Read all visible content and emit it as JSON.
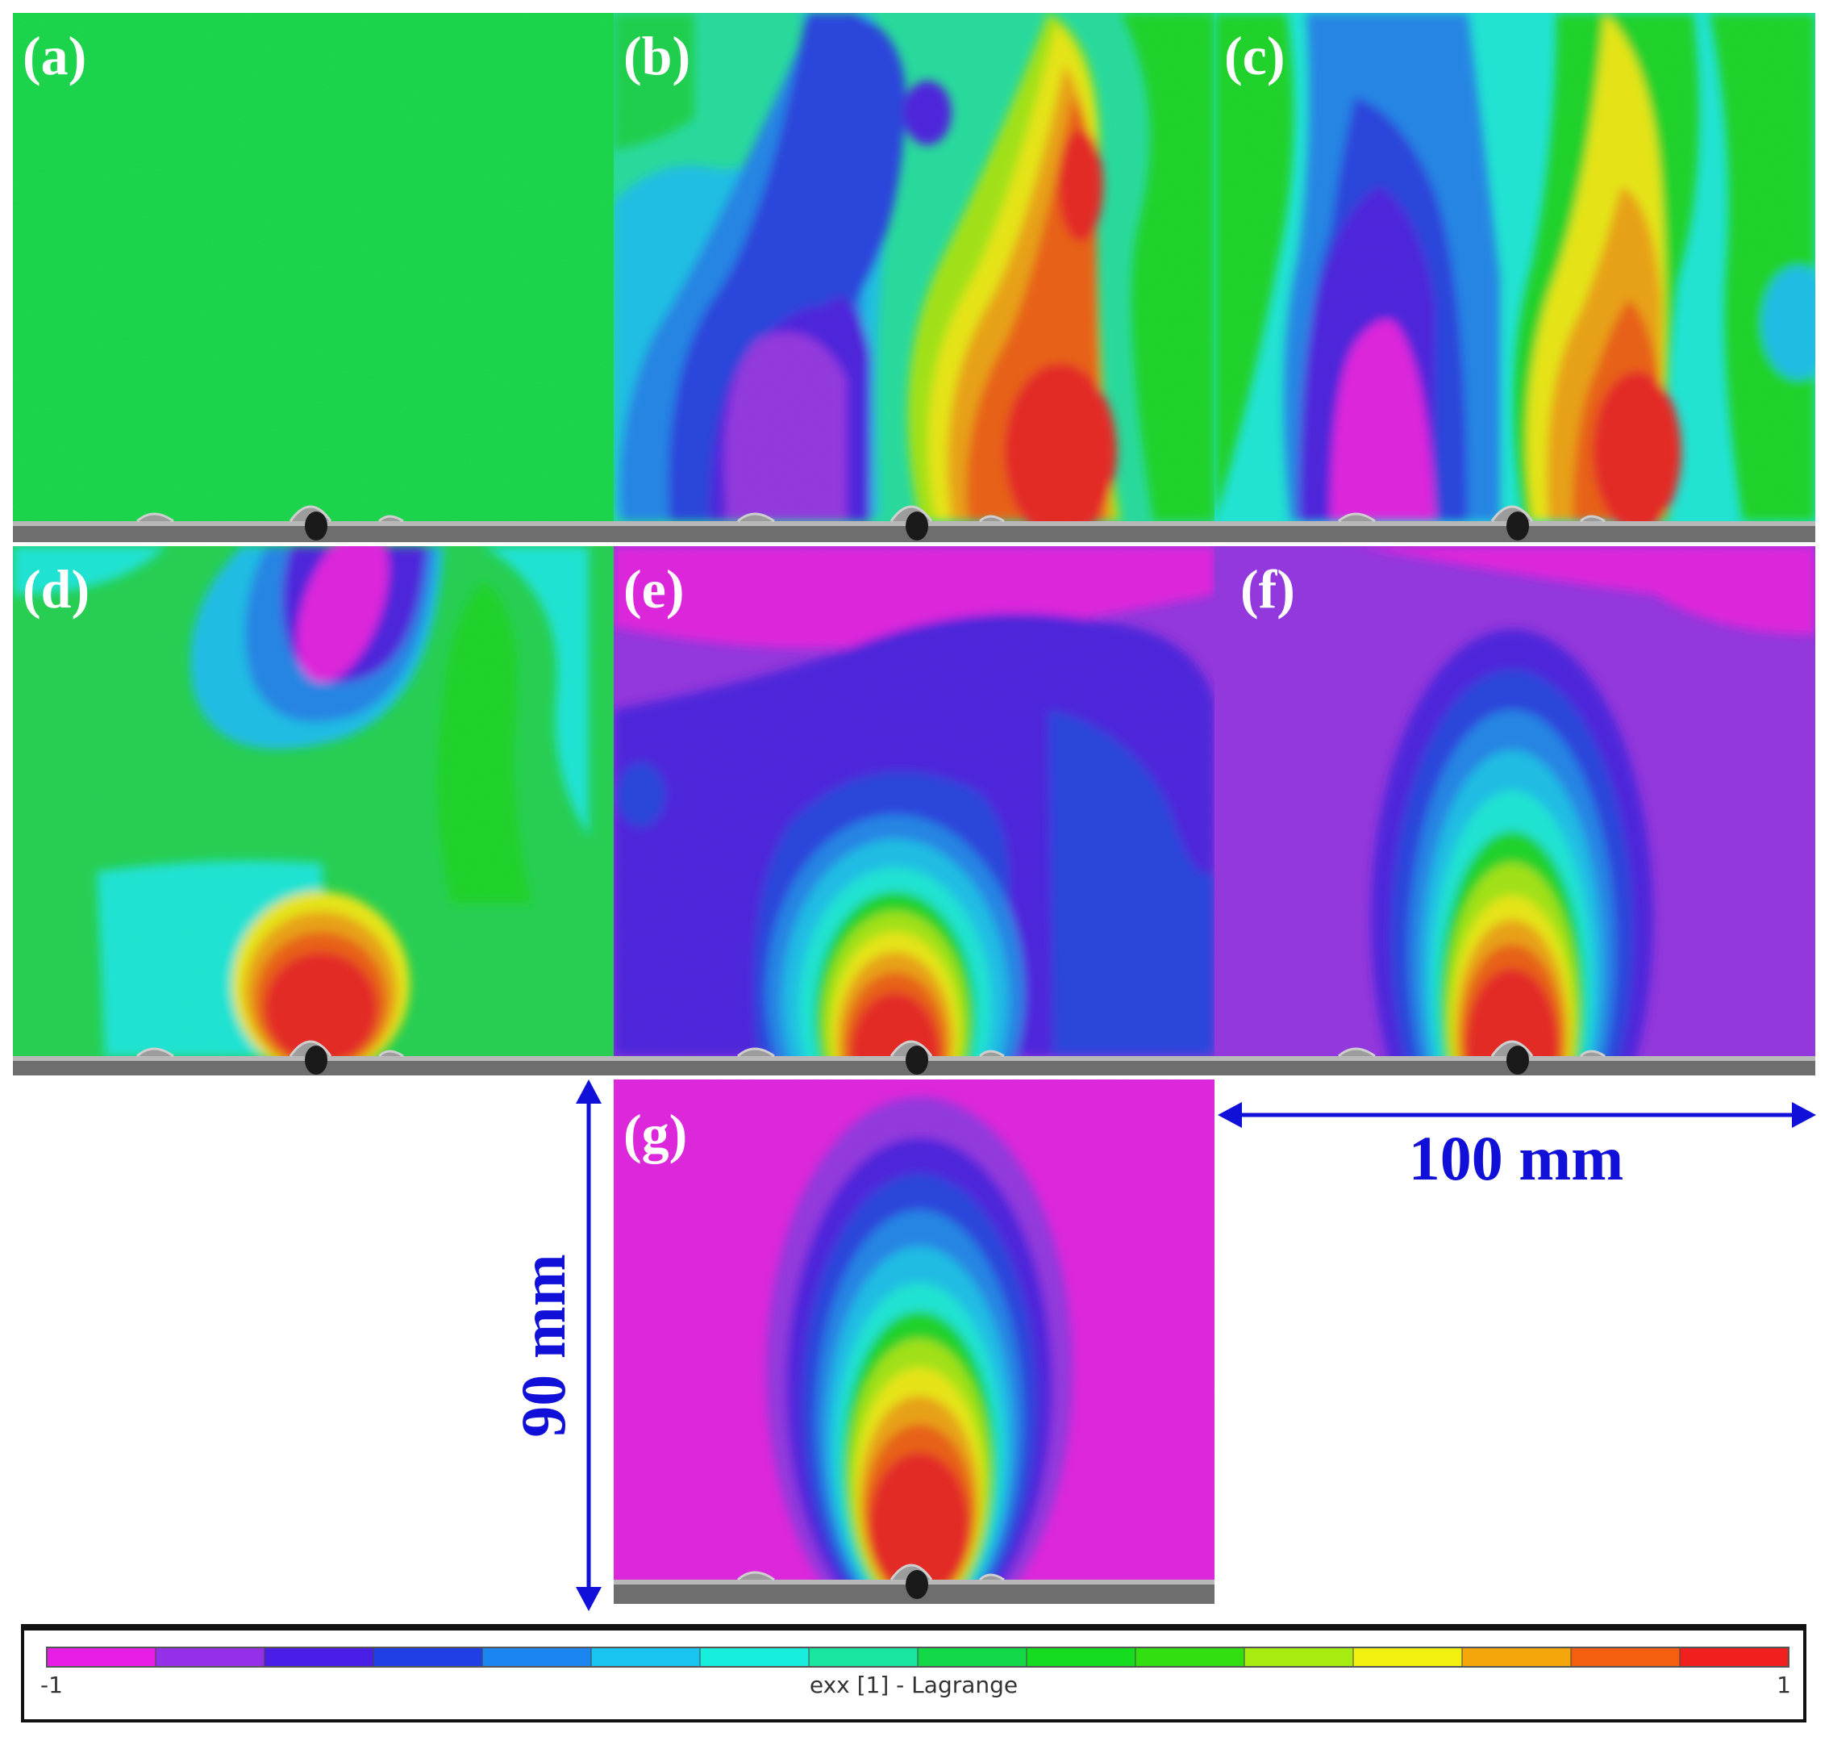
{
  "figure": {
    "panels": [
      {
        "id": "a",
        "label": "(a)"
      },
      {
        "id": "b",
        "label": "(b)"
      },
      {
        "id": "c",
        "label": "(c)"
      },
      {
        "id": "d",
        "label": "(d)"
      },
      {
        "id": "e",
        "label": "(e)"
      },
      {
        "id": "f",
        "label": "(f)"
      },
      {
        "id": "g",
        "label": "(g)"
      }
    ],
    "dimensions": {
      "width_label": "100 mm",
      "height_label": "90 mm"
    },
    "colorbar": {
      "min_label": "-1",
      "max_label": "1",
      "title": "exx [1] - Lagrange",
      "colors": [
        "#e81ee6",
        "#9530e8",
        "#4a1ee6",
        "#2040e6",
        "#1c86f0",
        "#18c4f0",
        "#18eedc",
        "#18e6a0",
        "#12d848",
        "#16dc20",
        "#32e012",
        "#a6ec10",
        "#f2f00e",
        "#f4a60a",
        "#f45e10",
        "#f0201e"
      ]
    },
    "colors": {
      "annotation": "#1010d8",
      "label": "#ffffff"
    }
  }
}
